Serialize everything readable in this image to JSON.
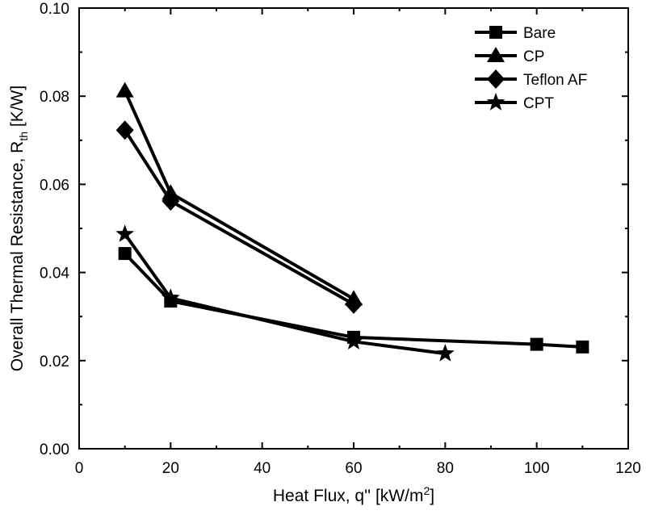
{
  "chart_data": {
    "type": "line",
    "xlabel": "Heat Flux, q'' [kW/m",
    "xlabel_sup": "2",
    "xlabel_end": "]",
    "ylabel": "Overall Thermal Resistance, R",
    "ylabel_sub": "th",
    "ylabel_end": " [K/W]",
    "xlim": [
      0,
      120
    ],
    "ylim": [
      0.0,
      0.1
    ],
    "xticks": [
      "0",
      "20",
      "40",
      "60",
      "80",
      "100",
      "120"
    ],
    "yticks": [
      "0.00",
      "0.02",
      "0.04",
      "0.06",
      "0.08",
      "0.10"
    ],
    "grid": false,
    "legend_position": "top-right",
    "series": [
      {
        "name": "Bare",
        "marker": "square",
        "x": [
          10,
          20,
          60,
          100,
          110
        ],
        "y": [
          0.0443,
          0.0335,
          0.0253,
          0.0237,
          0.0231
        ]
      },
      {
        "name": "CP",
        "marker": "triangle",
        "x": [
          10,
          20,
          60
        ],
        "y": [
          0.0812,
          0.058,
          0.034
        ]
      },
      {
        "name": "Teflon AF",
        "marker": "diamond",
        "x": [
          10,
          20,
          60
        ],
        "y": [
          0.0723,
          0.0562,
          0.0328
        ]
      },
      {
        "name": "CPT",
        "marker": "star",
        "x": [
          10,
          20,
          60,
          80
        ],
        "y": [
          0.0487,
          0.0342,
          0.0243,
          0.0216
        ]
      }
    ],
    "colors": {
      "line": "#000000",
      "background": "#ffffff"
    }
  }
}
